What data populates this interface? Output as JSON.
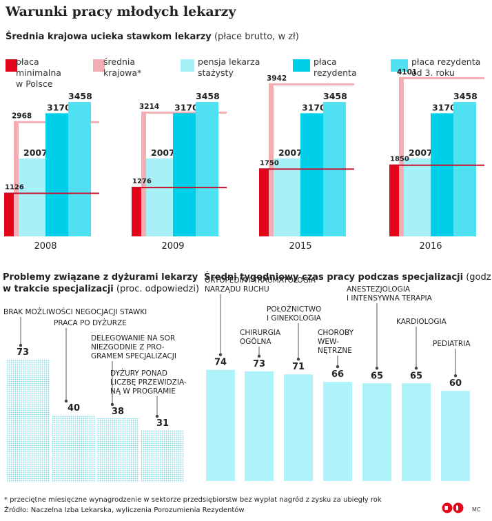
{
  "title": "Warunki pracy młodych lekarzy",
  "section1": {
    "subtitle_bold": "Średnia krajowa ucieka stawkom lekarzy",
    "subtitle_light": "(płace brutto, w zł)"
  },
  "legend": [
    {
      "label": "płaca\nminimalna\nw Polsce",
      "color": "#e3061a"
    },
    {
      "label": "średnia\nkrajowa*",
      "color": "#f2aeb3"
    },
    {
      "label": "pensja lekarza\nstażysty",
      "color": "#a8f0f8"
    },
    {
      "label": "płaca\nrezydenta",
      "color": "#00cfea"
    },
    {
      "label": "płaca rezydenta\nod 3. roku",
      "color": "#4fe0f2"
    }
  ],
  "section2": {
    "title_bold_1": "Problemy związane z dyżurami lekarzy",
    "title_bold_2": "w trakcie specjalizacji",
    "title_light": "(proc. odpowiedzi)"
  },
  "section3": {
    "title_bold": "Średni tygodniowy czas pracy podczas specjalizacji",
    "title_light": "(godz.)"
  },
  "footnote": "* przeciętne miesięczne wynagrodzenie w sektorze przedsiębiorstw bez wypłat nagród z zysku za ubiegły rok",
  "source": "Źródło: Naczelna Izba Lekarska, wyliczenia Porozumienia Rezydentów",
  "credit": "MC",
  "chart_data": [
    {
      "type": "bar",
      "categories": [
        "2008",
        "2009",
        "2015",
        "2016"
      ],
      "series": [
        {
          "name": "płaca minimalna w Polsce",
          "values": [
            1126,
            1276,
            1750,
            1850
          ],
          "color": "#e3061a"
        },
        {
          "name": "średnia krajowa*",
          "values": [
            2968,
            3214,
            3942,
            4101
          ],
          "color": "#f2aeb3"
        },
        {
          "name": "pensja lekarza stażysty",
          "values": [
            2007,
            2007,
            2007,
            2007
          ],
          "color": "#a8f0f8"
        },
        {
          "name": "płaca rezydenta",
          "values": [
            3170,
            3170,
            3170,
            3170
          ],
          "color": "#00cfea"
        },
        {
          "name": "płaca rezydenta od 3. roku",
          "values": [
            3458,
            3458,
            3458,
            3458
          ],
          "color": "#4fe0f2"
        }
      ],
      "ylim": [
        0,
        4400
      ]
    },
    {
      "type": "bar",
      "categories": [
        "BRAK MOŻLIWOŚCI NEGOCJACJI STAWKI",
        "PRACA PO DYŻURZE",
        "DELEGOWANIE NA SOR NIEZGODNIE Z PRO-GRAMEM SPECJALIZACJI",
        "DYŻURY PONAD LICZBĘ PRZEWIDZIA-NĄ W PROGRAMIE"
      ],
      "values": [
        73,
        40,
        38,
        31
      ],
      "color": "#6fd6e4",
      "ylim": [
        0,
        100
      ]
    },
    {
      "type": "bar",
      "categories": [
        "ORTOPEDIA I TRAUMATOLOGIA NARZĄDU RUCHU",
        "CHIRURGIA OGÓLNA",
        "POŁOŻNICTWO I GINEKOLOGIA",
        "CHOROBY WEW-NĘTRZNE",
        "ANESTEZJOLOGIA I INTENSYWNA TERAPIA",
        "KARDIOLOGIA",
        "PEDIATRIA"
      ],
      "values": [
        74,
        73,
        71,
        66,
        65,
        65,
        60
      ],
      "color": "#aef3fa",
      "ylim": [
        0,
        100
      ]
    }
  ]
}
